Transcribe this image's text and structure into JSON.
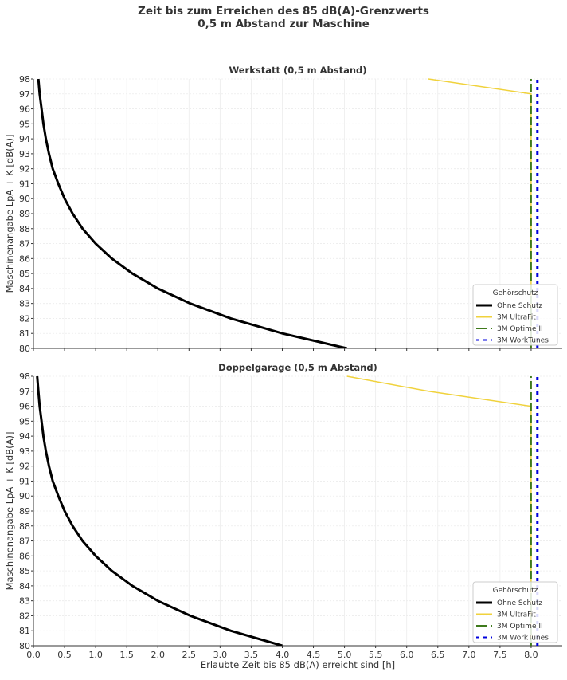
{
  "chart_data": {
    "title": [
      "Zeit bis zum Erreichen des 85 dB(A)-Grenzwerts",
      "0,5 m Abstand zur Maschine"
    ],
    "type": "line",
    "xlabel": "Erlaubte Zeit bis 85 dB(A) erreicht sind [h]",
    "ylabel": "Maschinenangabe LpA + K [dB(A)]",
    "xlim": [
      0,
      8.5
    ],
    "ylim": [
      80,
      98
    ],
    "xticks": [
      "0.0",
      "0.5",
      "1.0",
      "1.5",
      "2.0",
      "2.5",
      "3.0",
      "3.5",
      "4.0",
      "4.5",
      "5.0",
      "5.5",
      "6.0",
      "6.5",
      "7.0",
      "7.5",
      "8.0"
    ],
    "yticks": [
      "80",
      "81",
      "82",
      "83",
      "84",
      "85",
      "86",
      "87",
      "88",
      "89",
      "90",
      "91",
      "92",
      "93",
      "94",
      "95",
      "96",
      "97",
      "98"
    ],
    "grid": true,
    "legend": {
      "title": "Gehörschutz",
      "placement": "lower-right"
    },
    "y": [
      80,
      81,
      82,
      83,
      84,
      85,
      86,
      87,
      88,
      89,
      90,
      91,
      92,
      93,
      94,
      95,
      96,
      97,
      98
    ],
    "panels": [
      {
        "title": "Werkstatt (0,5 m Abstand)",
        "series": [
          {
            "name": "Ohne Schutz",
            "color": "#000000",
            "style": "solid",
            "x": [
              5.04,
              4.0,
              3.17,
              2.52,
              2.0,
              1.59,
              1.26,
              1.0,
              0.79,
              0.63,
              0.5,
              0.4,
              0.31,
              0.25,
              0.2,
              0.16,
              0.13,
              0.1,
              0.08
            ]
          },
          {
            "name": "3M UltraFit",
            "color": "#f0d23c",
            "style": "solid",
            "x": [
              8,
              8,
              8,
              8,
              8,
              8,
              8,
              8,
              8,
              8,
              8,
              8,
              8,
              8,
              8,
              8,
              8,
              8,
              6.35
            ]
          },
          {
            "name": "3M Optime II",
            "color": "#3f7a1c",
            "style": "dashed",
            "x": [
              8,
              8,
              8,
              8,
              8,
              8,
              8,
              8,
              8,
              8,
              8,
              8,
              8,
              8,
              8,
              8,
              8,
              8,
              8
            ]
          },
          {
            "name": "3M WorkTunes",
            "color": "#0000dd",
            "style": "dotted",
            "x": [
              8.1,
              8.1,
              8.1,
              8.1,
              8.1,
              8.1,
              8.1,
              8.1,
              8.1,
              8.1,
              8.1,
              8.1,
              8.1,
              8.1,
              8.1,
              8.1,
              8.1,
              8.1,
              8.1
            ]
          }
        ]
      },
      {
        "title": "Doppelgarage (0,5 m Abstand)",
        "series": [
          {
            "name": "Ohne Schutz",
            "color": "#000000",
            "style": "solid",
            "x": [
              4.0,
              3.17,
              2.52,
              2.0,
              1.59,
              1.26,
              1.0,
              0.79,
              0.63,
              0.5,
              0.4,
              0.31,
              0.25,
              0.2,
              0.16,
              0.13,
              0.1,
              0.08,
              0.06
            ]
          },
          {
            "name": "3M UltraFit",
            "color": "#f0d23c",
            "style": "solid",
            "x": [
              8,
              8,
              8,
              8,
              8,
              8,
              8,
              8,
              8,
              8,
              8,
              8,
              8,
              8,
              8,
              8,
              8,
              6.35,
              5.04
            ]
          },
          {
            "name": "3M Optime II",
            "color": "#3f7a1c",
            "style": "dashed",
            "x": [
              8,
              8,
              8,
              8,
              8,
              8,
              8,
              8,
              8,
              8,
              8,
              8,
              8,
              8,
              8,
              8,
              8,
              8,
              8
            ]
          },
          {
            "name": "3M WorkTunes",
            "color": "#0000dd",
            "style": "dotted",
            "x": [
              8.1,
              8.1,
              8.1,
              8.1,
              8.1,
              8.1,
              8.1,
              8.1,
              8.1,
              8.1,
              8.1,
              8.1,
              8.1,
              8.1,
              8.1,
              8.1,
              8.1,
              8.1,
              8.1
            ]
          }
        ]
      }
    ]
  }
}
